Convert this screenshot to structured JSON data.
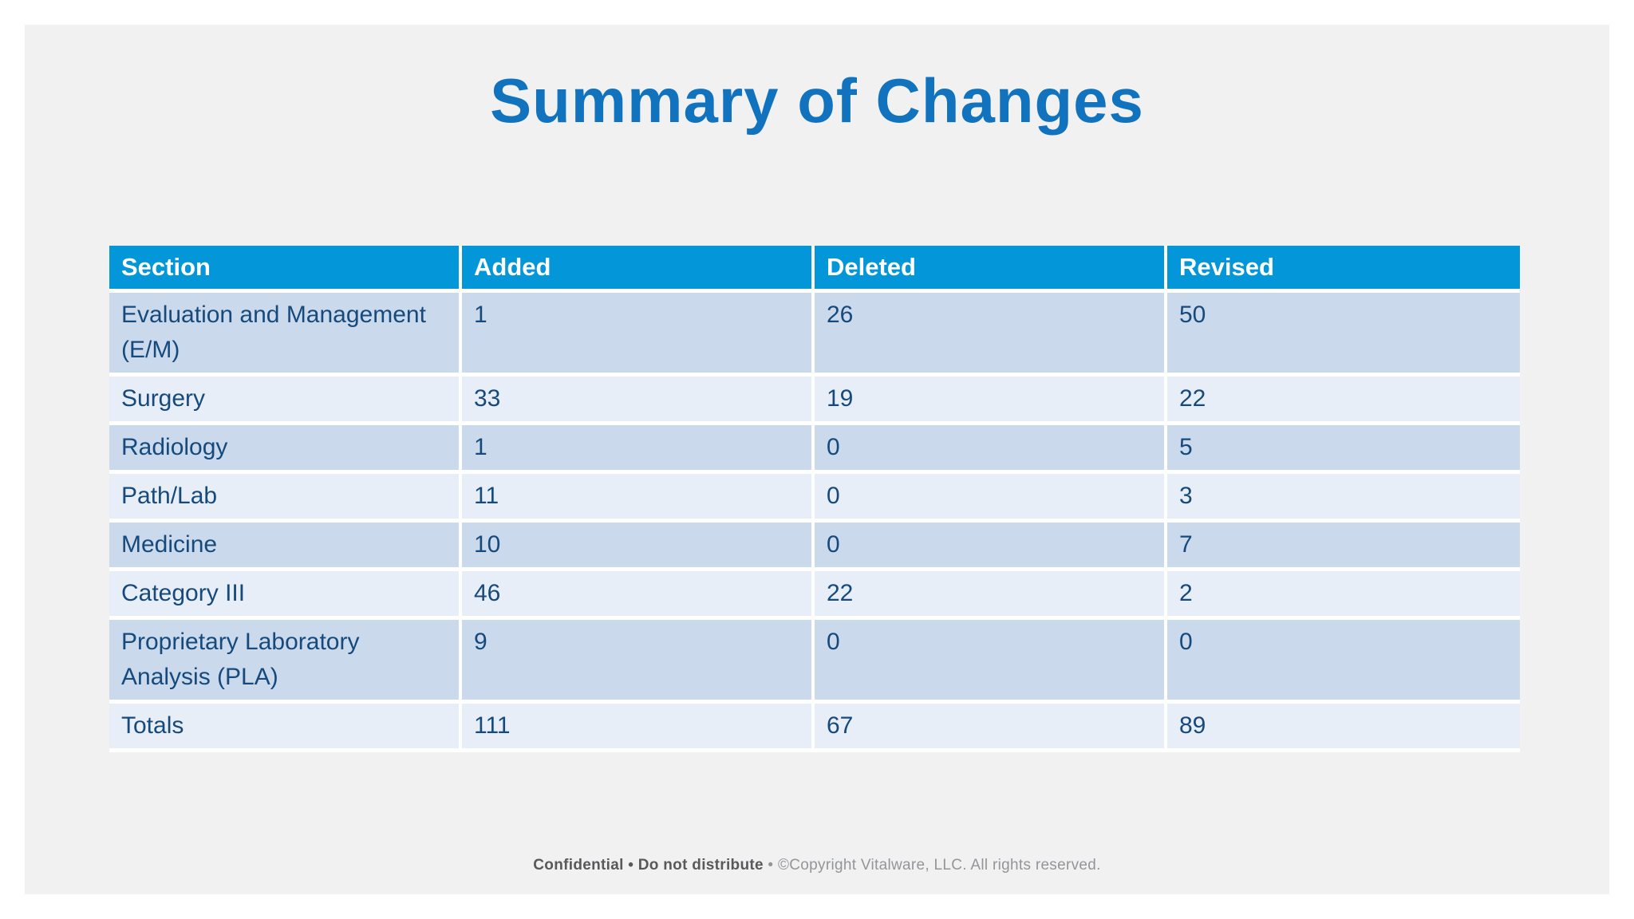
{
  "slide": {
    "title": "Summary of Changes",
    "footer": {
      "confidential": "Confidential • Do not distribute",
      "separator": " • ",
      "copyright": "©Copyright Vitalware, LLC. All rights reserved."
    }
  },
  "table": {
    "columns": [
      "Section",
      "Added",
      "Deleted",
      "Revised"
    ],
    "rows": [
      {
        "section": "Evaluation and Management (E/M)",
        "added": "1",
        "deleted": "26",
        "revised": "50"
      },
      {
        "section": "Surgery",
        "added": "33",
        "deleted": "19",
        "revised": "22"
      },
      {
        "section": "Radiology",
        "added": "1",
        "deleted": "0",
        "revised": "5"
      },
      {
        "section": "Path/Lab",
        "added": "11",
        "deleted": "0",
        "revised": "3"
      },
      {
        "section": "Medicine",
        "added": "10",
        "deleted": "0",
        "revised": "7"
      },
      {
        "section": "Category III",
        "added": "46",
        "deleted": "22",
        "revised": "2"
      },
      {
        "section": "Proprietary Laboratory Analysis (PLA)",
        "added": "9",
        "deleted": "0",
        "revised": "0"
      },
      {
        "section": "Totals",
        "added": "111",
        "deleted": "67",
        "revised": "89"
      }
    ]
  },
  "chart_data": {
    "type": "table",
    "title": "Summary of Changes",
    "categories": [
      "Evaluation and Management (E/M)",
      "Surgery",
      "Radiology",
      "Path/Lab",
      "Medicine",
      "Category III",
      "Proprietary Laboratory Analysis (PLA)",
      "Totals"
    ],
    "series": [
      {
        "name": "Added",
        "values": [
          1,
          33,
          1,
          11,
          10,
          46,
          9,
          111
        ]
      },
      {
        "name": "Deleted",
        "values": [
          26,
          19,
          0,
          0,
          0,
          22,
          0,
          67
        ]
      },
      {
        "name": "Revised",
        "values": [
          50,
          22,
          5,
          3,
          7,
          2,
          0,
          89
        ]
      }
    ]
  },
  "colors": {
    "title_blue": "#1173BD",
    "header_blue": "#0396D8",
    "band_dark": "#CADAEC",
    "band_light": "#E7EEF7",
    "cell_navy": "#174A7C",
    "footer_dark": "#58595B",
    "footer_light": "#939598",
    "slide_bg": "#F1F1F2"
  }
}
